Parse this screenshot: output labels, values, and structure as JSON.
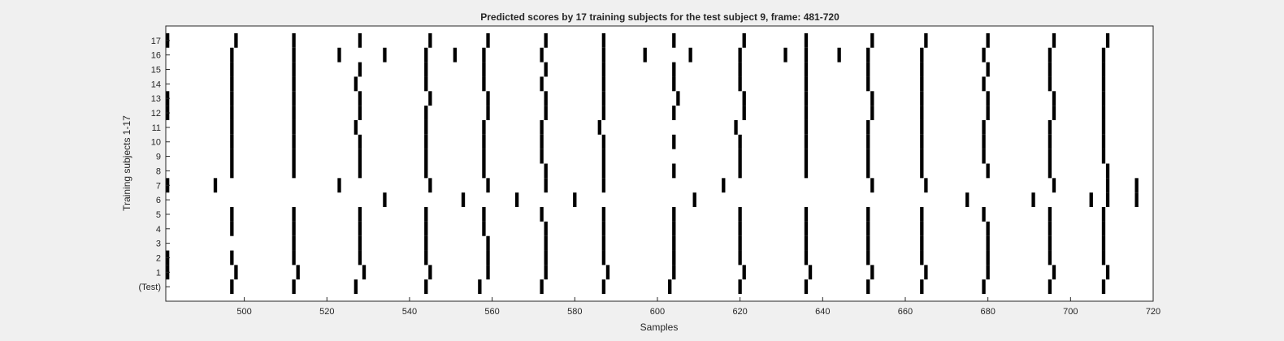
{
  "chart_data": {
    "type": "raster",
    "title": "Predicted scores by 17 training subjects for the test subject 9, frame: 481-720",
    "xlabel": "Samples",
    "ylabel": "Training subjects 1-17",
    "xlim": [
      481,
      720
    ],
    "x_ticks": [
      "500",
      "520",
      "540",
      "560",
      "580",
      "600",
      "620",
      "640",
      "660",
      "680",
      "700",
      "720"
    ],
    "y_ticks": [
      "(Test)",
      "1",
      "2",
      "3",
      "4",
      "5",
      "6",
      "7",
      "8",
      "9",
      "10",
      "11",
      "12",
      "13",
      "14",
      "15",
      "16",
      "17"
    ],
    "grid": false,
    "colors": {
      "background": "#f0f0f0",
      "axes": "#ffffff",
      "event": "#000000",
      "text": "#262626"
    },
    "rows": [
      {
        "label": "(Test)",
        "events": [
          497,
          512,
          527,
          544,
          557,
          572,
          587,
          603,
          620,
          636,
          651,
          664,
          679,
          695,
          708
        ]
      },
      {
        "label": "1",
        "events": [
          481,
          498,
          513,
          529,
          545,
          559,
          573,
          588,
          604,
          621,
          637,
          652,
          665,
          680,
          696,
          709
        ]
      },
      {
        "label": "2",
        "events": [
          481,
          497,
          512,
          528,
          544,
          559,
          573,
          587,
          604,
          620,
          636,
          651,
          664,
          680,
          695,
          708
        ]
      },
      {
        "label": "3",
        "events": [
          512,
          528,
          544,
          559,
          573,
          587,
          604,
          620,
          636,
          651,
          664,
          680,
          695,
          708
        ]
      },
      {
        "label": "4",
        "events": [
          497,
          512,
          528,
          544,
          558,
          573,
          587,
          604,
          620,
          636,
          651,
          664,
          680,
          695,
          708
        ]
      },
      {
        "label": "5",
        "events": [
          497,
          512,
          528,
          544,
          558,
          572,
          587,
          604,
          620,
          636,
          651,
          664,
          679,
          695,
          708
        ]
      },
      {
        "label": "6",
        "events": [
          534,
          553,
          566,
          580,
          609,
          675,
          691,
          705,
          709,
          716
        ]
      },
      {
        "label": "7",
        "events": [
          481,
          493,
          523,
          545,
          559,
          573,
          587,
          616,
          652,
          665,
          696,
          709,
          716
        ]
      },
      {
        "label": "8",
        "events": [
          497,
          512,
          528,
          544,
          558,
          573,
          587,
          604,
          620,
          636,
          651,
          664,
          680,
          695,
          709
        ]
      },
      {
        "label": "9",
        "events": [
          497,
          512,
          528,
          544,
          558,
          572,
          587,
          620,
          636,
          651,
          664,
          679,
          695,
          708
        ]
      },
      {
        "label": "10",
        "events": [
          497,
          512,
          528,
          544,
          558,
          572,
          587,
          604,
          620,
          636,
          651,
          664,
          679,
          695,
          708
        ]
      },
      {
        "label": "11",
        "events": [
          497,
          512,
          527,
          544,
          558,
          572,
          586,
          619,
          636,
          651,
          664,
          679,
          695,
          708
        ]
      },
      {
        "label": "12",
        "events": [
          481,
          497,
          512,
          528,
          544,
          559,
          573,
          587,
          604,
          621,
          636,
          652,
          664,
          680,
          696,
          708
        ]
      },
      {
        "label": "13",
        "events": [
          481,
          497,
          512,
          528,
          545,
          559,
          573,
          587,
          605,
          621,
          636,
          652,
          664,
          680,
          696,
          708
        ]
      },
      {
        "label": "14",
        "events": [
          497,
          512,
          527,
          544,
          558,
          572,
          587,
          604,
          620,
          636,
          651,
          664,
          679,
          695,
          708
        ]
      },
      {
        "label": "15",
        "events": [
          497,
          512,
          528,
          544,
          558,
          573,
          587,
          604,
          620,
          636,
          651,
          664,
          680,
          695,
          708
        ]
      },
      {
        "label": "16",
        "events": [
          497,
          512,
          523,
          534,
          544,
          551,
          558,
          572,
          587,
          597,
          608,
          620,
          631,
          636,
          644,
          651,
          664,
          679,
          695,
          708
        ]
      },
      {
        "label": "17",
        "events": [
          481,
          498,
          512,
          528,
          545,
          559,
          573,
          587,
          604,
          621,
          636,
          652,
          665,
          680,
          696,
          709
        ]
      }
    ]
  }
}
